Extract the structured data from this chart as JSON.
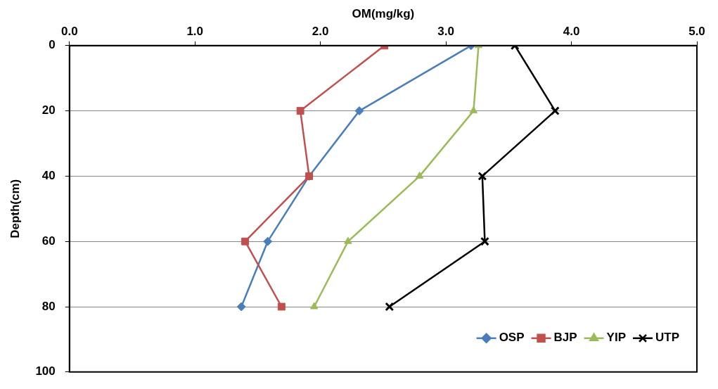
{
  "chart_data": {
    "type": "line",
    "xlabel": "OM(mg/kg)",
    "ylabel": "Depth(cm)",
    "xlim": [
      0,
      5
    ],
    "xticks": [
      {
        "value": 0,
        "label": "0.0"
      },
      {
        "value": 1,
        "label": "1.0"
      },
      {
        "value": 2,
        "label": "2.0"
      },
      {
        "value": 3,
        "label": "3.0"
      },
      {
        "value": 4,
        "label": "4.0"
      },
      {
        "value": 5,
        "label": "5.0"
      }
    ],
    "ylim": [
      100,
      0
    ],
    "yticks": [
      0,
      20,
      40,
      60,
      80,
      100
    ],
    "grid": "y",
    "legend": "bottom right",
    "line_style": "solid",
    "series": [
      {
        "name": "OSP",
        "color": "#4a7ebb",
        "marker": "diamond",
        "x": [
          3.2,
          2.31,
          1.91,
          1.58,
          1.37
        ],
        "values": [
          0,
          20,
          40,
          60,
          80
        ]
      },
      {
        "name": "BJP",
        "color": "#c0504d",
        "marker": "square",
        "x": [
          2.51,
          1.84,
          1.91,
          1.4,
          1.69
        ],
        "values": [
          0,
          20,
          40,
          60,
          80
        ]
      },
      {
        "name": "YIP",
        "color": "#9bbb59",
        "marker": "triangle",
        "x": [
          3.26,
          3.22,
          2.79,
          2.22,
          1.95
        ],
        "values": [
          0,
          20,
          40,
          60,
          80
        ]
      },
      {
        "name": "UTP",
        "color": "#000000",
        "marker": "cross",
        "x": [
          3.55,
          3.87,
          3.29,
          3.31,
          2.55
        ],
        "values": [
          0,
          20,
          40,
          60,
          80
        ]
      }
    ]
  }
}
